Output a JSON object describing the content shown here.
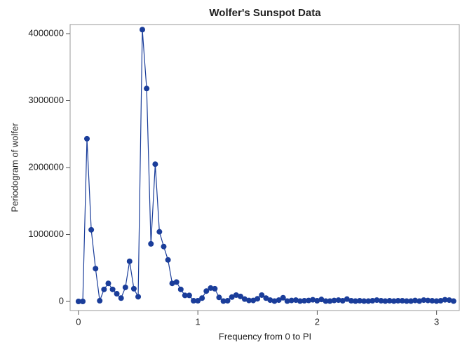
{
  "chart_data": {
    "type": "line",
    "title": "Wolfer's Sunspot Data",
    "x_label": "Frequency from 0 to PI",
    "y_label": "Periodogram of wolfer",
    "x": [
      0,
      0.036,
      0.071,
      0.107,
      0.143,
      0.178,
      0.214,
      0.25,
      0.286,
      0.321,
      0.357,
      0.393,
      0.428,
      0.464,
      0.5,
      0.535,
      0.571,
      0.607,
      0.643,
      0.678,
      0.714,
      0.75,
      0.785,
      0.821,
      0.857,
      0.892,
      0.928,
      0.964,
      1.0,
      1.035,
      1.071,
      1.107,
      1.142,
      1.178,
      1.214,
      1.249,
      1.285,
      1.321,
      1.357,
      1.392,
      1.428,
      1.464,
      1.499,
      1.535,
      1.571,
      1.606,
      1.642,
      1.678,
      1.714,
      1.749,
      1.785,
      1.821,
      1.856,
      1.892,
      1.928,
      1.963,
      1.999,
      2.035,
      2.071,
      2.106,
      2.142,
      2.178,
      2.213,
      2.249,
      2.285,
      2.32,
      2.356,
      2.392,
      2.428,
      2.463,
      2.499,
      2.535,
      2.57,
      2.606,
      2.642,
      2.677,
      2.713,
      2.749,
      2.785,
      2.82,
      2.856,
      2.892,
      2.927,
      2.963,
      2.999,
      3.034,
      3.07,
      3.106,
      3.142
    ],
    "series": [
      {
        "color": "#1a3d9a",
        "values": [
          0,
          0,
          2430000,
          1070000,
          490000,
          10000,
          180000,
          270000,
          180000,
          115000,
          50000,
          210000,
          600000,
          190000,
          70000,
          4060000,
          3180000,
          860000,
          2050000,
          1040000,
          820000,
          620000,
          270000,
          290000,
          180000,
          90000,
          90000,
          10000,
          10000,
          50000,
          155000,
          200000,
          190000,
          60000,
          5000,
          10000,
          65000,
          95000,
          75000,
          35000,
          15000,
          15000,
          40000,
          95000,
          50000,
          20000,
          5000,
          20000,
          55000,
          5000,
          15000,
          20000,
          5000,
          10000,
          15000,
          25000,
          10000,
          30000,
          5000,
          5000,
          15000,
          20000,
          10000,
          35000,
          10000,
          5000,
          10000,
          5000,
          5000,
          10000,
          20000,
          10000,
          5000,
          10000,
          5000,
          10000,
          10000,
          5000,
          5000,
          15000,
          5000,
          20000,
          15000,
          10000,
          5000,
          10000,
          25000,
          20000,
          5000
        ]
      }
    ],
    "xlim": [
      -0.07,
      3.19
    ],
    "ylim": [
      -136000,
      4136000
    ],
    "xticks": [
      0,
      1,
      2,
      3
    ],
    "yticks": [
      0,
      1000000,
      2000000,
      3000000,
      4000000
    ]
  }
}
